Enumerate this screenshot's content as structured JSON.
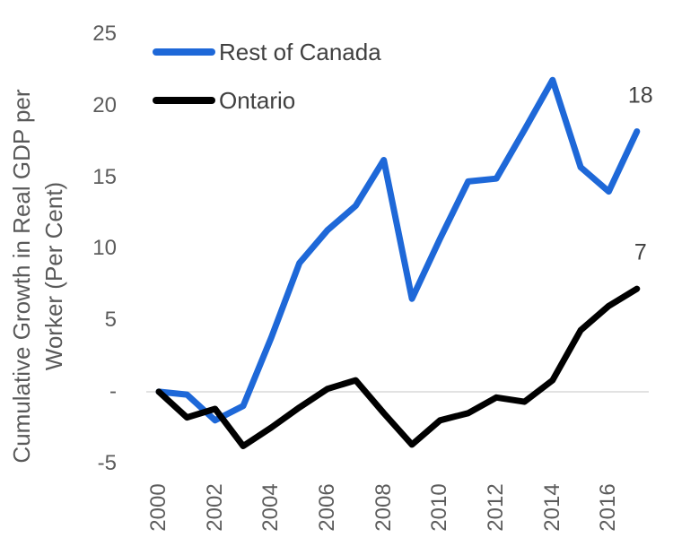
{
  "chart_data": {
    "type": "line",
    "y_axis_title_line1": "Cumulative Growth in Real GDP per",
    "y_axis_title_line2": "Worker (Per Cent)",
    "x": [
      2000,
      2001,
      2002,
      2003,
      2004,
      2005,
      2006,
      2007,
      2008,
      2009,
      2010,
      2011,
      2012,
      2013,
      2014,
      2015,
      2016,
      2017
    ],
    "x_tick_labels": [
      "2000",
      "2002",
      "2004",
      "2006",
      "2008",
      "2010",
      "2012",
      "2014",
      "2016"
    ],
    "y_ticks": [
      {
        "label": "25",
        "value": 25
      },
      {
        "label": "20",
        "value": 20
      },
      {
        "label": "15",
        "value": 15
      },
      {
        "label": "10",
        "value": 10
      },
      {
        "label": "5",
        "value": 5
      },
      {
        "label": "-",
        "value": 0
      },
      {
        "label": "-5",
        "value": -5
      }
    ],
    "ylim": [
      -5,
      25
    ],
    "grid": "zero-line-only",
    "gridline_color": "#d9d9d9",
    "legend_position": "top-left",
    "series": [
      {
        "name": "Rest of Canada",
        "color": "#1e68d8",
        "end_label": "18",
        "values": [
          0,
          -0.2,
          -2.0,
          -1.0,
          3.8,
          9.0,
          11.3,
          13.0,
          16.2,
          6.5,
          10.7,
          14.7,
          14.9,
          18.3,
          21.8,
          15.7,
          14.0,
          18.2
        ]
      },
      {
        "name": "Ontario",
        "color": "#000000",
        "end_label": "7",
        "values": [
          0,
          -1.8,
          -1.2,
          -3.8,
          -2.5,
          -1.1,
          0.2,
          0.8,
          -1.5,
          -3.7,
          -2.0,
          -1.5,
          -0.4,
          -0.7,
          0.8,
          4.3,
          6.0,
          7.2
        ]
      }
    ]
  }
}
